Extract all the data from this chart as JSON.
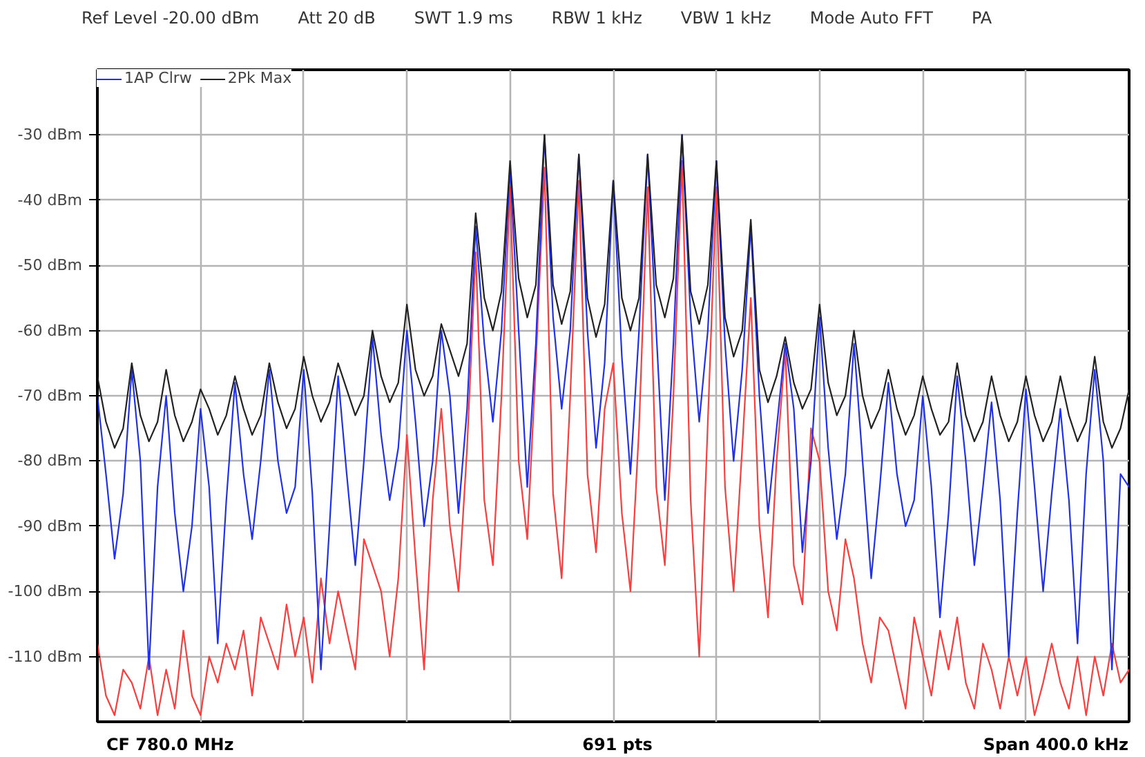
{
  "chart_data": {
    "type": "line",
    "categories": [
      null,
      null,
      null,
      null,
      null,
      null,
      null,
      null,
      null,
      null,
      null,
      null,
      null,
      null,
      null,
      null,
      null,
      null,
      null,
      null,
      null,
      null,
      null,
      null,
      null,
      null,
      null,
      null,
      null,
      null,
      null,
      null,
      null,
      null,
      null,
      null,
      null,
      null,
      null,
      null,
      null,
      null,
      null,
      null,
      null,
      null,
      null,
      null,
      null,
      null,
      null,
      null,
      null,
      null,
      null,
      null,
      null,
      null,
      null,
      null,
      null,
      null,
      null,
      null,
      null,
      null,
      null,
      null,
      null,
      null,
      null,
      null,
      null,
      null,
      null,
      null,
      null,
      null,
      null,
      null,
      null,
      null,
      null,
      null,
      null,
      null,
      null,
      null,
      null,
      null,
      null,
      null,
      null,
      null,
      null,
      null,
      null,
      null,
      null,
      null,
      null,
      null,
      null,
      null,
      null,
      null,
      null,
      null,
      null,
      null,
      null,
      null,
      null,
      null,
      null,
      null,
      null,
      null,
      null,
      null,
      null
    ],
    "series": [
      {
        "color": "#ff3b3b",
        "values": [
          -108,
          -116,
          -119,
          -112,
          -114,
          -118,
          -110,
          -119,
          -112,
          -118,
          -106,
          -116,
          -119,
          -110,
          -114,
          -108,
          -112,
          -106,
          -116,
          -104,
          -108,
          -112,
          -102,
          -110,
          -104,
          -114,
          -98,
          -108,
          -100,
          -106,
          -112,
          -92,
          -96,
          -100,
          -110,
          -98,
          -76,
          -95,
          -112,
          -86,
          -72,
          -90,
          -100,
          -78,
          -48,
          -86,
          -96,
          -70,
          -38,
          -80,
          -92,
          -65,
          -35,
          -85,
          -98,
          -70,
          -37,
          -82,
          -94,
          -72,
          -65,
          -88,
          -100,
          -75,
          -38,
          -84,
          -96,
          -70,
          -34,
          -86,
          -110,
          -74,
          -38,
          -84,
          -100,
          -78,
          -55,
          -90,
          -104,
          -80,
          -63,
          -96,
          -102,
          -75,
          -80,
          -100,
          -106,
          -92,
          -98,
          -108,
          -114,
          -104,
          -106,
          -112,
          -118,
          -104,
          -110,
          -116,
          -106,
          -112,
          -104,
          -114,
          -118,
          -108,
          -112,
          -118,
          -110,
          -116,
          -110,
          -119,
          -114,
          -108,
          -114,
          -118,
          -110,
          -119,
          -110,
          -116,
          -108,
          -114,
          -112
        ]
      },
      {
        "name": "1AP Clrw",
        "color": "#2030f0",
        "values": [
          -70,
          -82,
          -95,
          -85,
          -66,
          -80,
          -112,
          -84,
          -70,
          -88,
          -100,
          -90,
          -72,
          -84,
          -108,
          -86,
          -68,
          -82,
          -92,
          -80,
          -66,
          -80,
          -88,
          -84,
          -66,
          -85,
          -112,
          -90,
          -67,
          -82,
          -96,
          -80,
          -61,
          -76,
          -86,
          -78,
          -60,
          -74,
          -90,
          -80,
          -60,
          -70,
          -88,
          -72,
          -44,
          -62,
          -74,
          -60,
          -35,
          -60,
          -84,
          -62,
          -30,
          -58,
          -72,
          -60,
          -33,
          -60,
          -78,
          -65,
          -37,
          -64,
          -82,
          -60,
          -33,
          -60,
          -86,
          -62,
          -30,
          -58,
          -74,
          -60,
          -34,
          -62,
          -80,
          -66,
          -44,
          -70,
          -88,
          -75,
          -62,
          -72,
          -94,
          -80,
          -58,
          -78,
          -92,
          -82,
          -62,
          -80,
          -98,
          -84,
          -68,
          -82,
          -90,
          -86,
          -70,
          -84,
          -104,
          -88,
          -67,
          -80,
          -96,
          -84,
          -71,
          -86,
          -110,
          -88,
          -69,
          -84,
          -100,
          -85,
          -72,
          -86,
          -108,
          -82,
          -66,
          -80,
          -112,
          -82,
          -84
        ]
      },
      {
        "name": "2Pk Max",
        "color": "#222222",
        "values": [
          -67,
          -74,
          -78,
          -75,
          -65,
          -73,
          -77,
          -74,
          -66,
          -73,
          -77,
          -74,
          -69,
          -72,
          -76,
          -73,
          -67,
          -72,
          -76,
          -73,
          -65,
          -71,
          -75,
          -72,
          -64,
          -70,
          -74,
          -71,
          -65,
          -69,
          -73,
          -70,
          -60,
          -67,
          -71,
          -68,
          -56,
          -66,
          -70,
          -67,
          -59,
          -63,
          -67,
          -62,
          -42,
          -55,
          -60,
          -54,
          -34,
          -52,
          -58,
          -53,
          -30,
          -53,
          -59,
          -54,
          -33,
          -55,
          -61,
          -56,
          -37,
          -55,
          -60,
          -55,
          -33,
          -53,
          -58,
          -52,
          -30,
          -54,
          -59,
          -53,
          -34,
          -58,
          -64,
          -60,
          -43,
          -66,
          -71,
          -67,
          -61,
          -68,
          -72,
          -69,
          -56,
          -68,
          -73,
          -70,
          -60,
          -70,
          -75,
          -72,
          -66,
          -72,
          -76,
          -73,
          -67,
          -72,
          -76,
          -74,
          -65,
          -73,
          -77,
          -74,
          -67,
          -73,
          -77,
          -74,
          -67,
          -73,
          -77,
          -74,
          -67,
          -73,
          -77,
          -74,
          -64,
          -74,
          -78,
          -75,
          -69
        ]
      }
    ],
    "ylim": [
      -120,
      -20
    ],
    "yticks": [
      {
        "value": -30,
        "label": "-30 dBm"
      },
      {
        "value": -40,
        "label": "-40 dBm"
      },
      {
        "value": -50,
        "label": "-50 dBm"
      },
      {
        "value": -60,
        "label": "-60 dBm"
      },
      {
        "value": -70,
        "label": "-70 dBm"
      },
      {
        "value": -80,
        "label": "-80 dBm"
      },
      {
        "value": -90,
        "label": "-90 dBm"
      },
      {
        "value": -100,
        "label": "-100 dBm"
      },
      {
        "value": -110,
        "label": "-110 dBm"
      }
    ],
    "tick_labels": "y",
    "grid": true,
    "legend": "top left",
    "marker": "none",
    "line_style": "solid",
    "annotations": [
      "Ref Level -20.00 dBm",
      "Att 20 dB",
      "SWT 1.9 ms",
      "RBW 1 kHz",
      "VBW 1 kHz",
      "Mode Auto FFT",
      "PA",
      "CF 780.0 MHz",
      "691 pts",
      "Span 400.0 kHz"
    ]
  }
}
